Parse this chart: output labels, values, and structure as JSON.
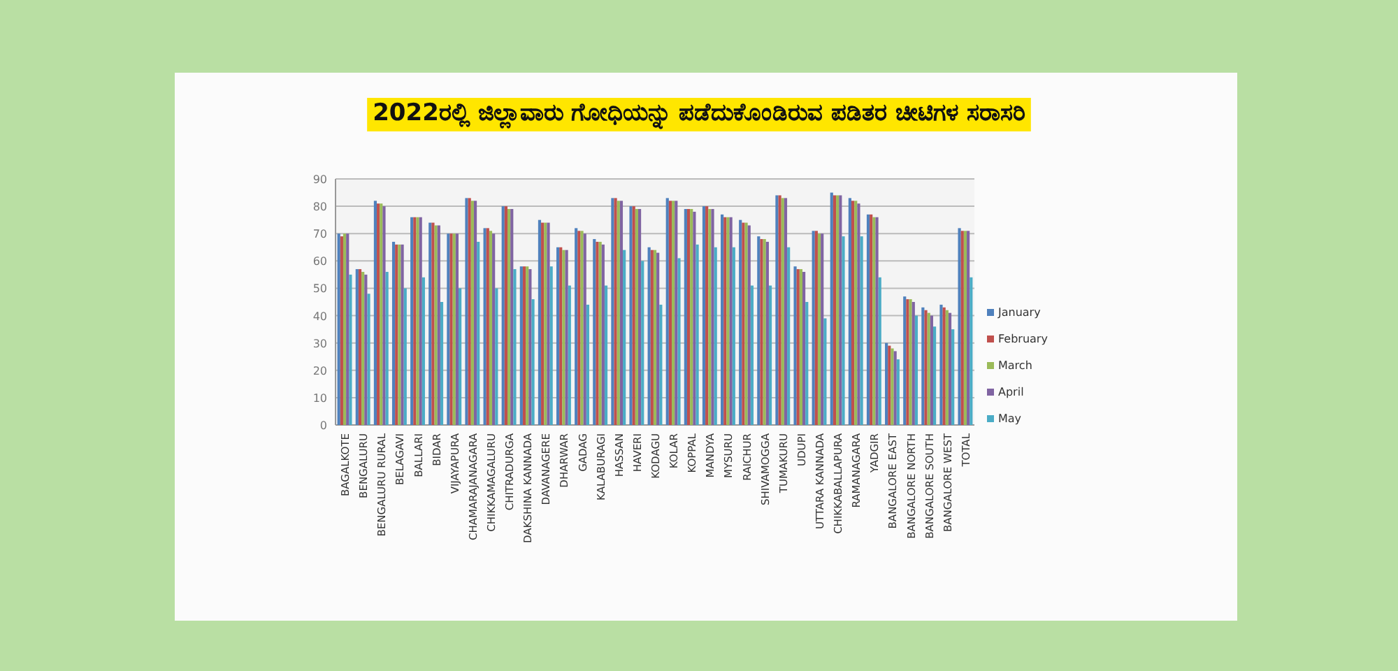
{
  "chart_data": {
    "type": "bar",
    "title": "2022ರಲ್ಲಿ ಜಿಲ್ಲಾವಾರು ಗೋಧಿಯನ್ನು ಪಡೆದುಕೊಂಡಿರುವ ಪಡಿತರ ಚೀಟಿಗಳ ಸರಾಸರಿ",
    "categories": [
      "BAGALKOTE",
      "BENGALURU",
      "BENGALURU RURAL",
      "BELAGAVI",
      "BALLARI",
      "BIDAR",
      "VIJAYAPURA",
      "CHAMARAJANAGARA",
      "CHIKKAMAGALURU",
      "CHITRADURGA",
      "DAKSHINA KANNADA",
      "DAVANAGERE",
      "DHARWAR",
      "GADAG",
      "KALABURAGI",
      "HASSAN",
      "HAVERI",
      "KODAGU",
      "KOLAR",
      "KOPPAL",
      "MANDYA",
      "MYSURU",
      "RAICHUR",
      "SHIVAMOGGA",
      "TUMAKURU",
      "UDUPI",
      "UTTARA KANNADA",
      "CHIKKABALLAPURA",
      "RAMANAGARA",
      "YADGIR",
      "BANGALORE EAST",
      "BANGALORE NORTH",
      "BANGALORE SOUTH",
      "BANGALORE WEST",
      "TOTAL"
    ],
    "series": [
      {
        "name": "January",
        "color": "#4f81bd",
        "values": [
          70,
          57,
          82,
          67,
          76,
          74,
          70,
          83,
          72,
          80,
          58,
          75,
          65,
          72,
          68,
          83,
          80,
          65,
          83,
          79,
          80,
          77,
          75,
          69,
          84,
          58,
          71,
          85,
          83,
          77,
          30,
          47,
          43,
          44,
          72
        ]
      },
      {
        "name": "February",
        "color": "#c0504d",
        "values": [
          69,
          57,
          81,
          66,
          76,
          74,
          70,
          83,
          72,
          80,
          58,
          74,
          65,
          71,
          67,
          83,
          80,
          64,
          82,
          79,
          80,
          76,
          74,
          68,
          84,
          57,
          71,
          84,
          82,
          77,
          29,
          46,
          42,
          43,
          71
        ]
      },
      {
        "name": "March",
        "color": "#9bbb59",
        "values": [
          70,
          56,
          81,
          66,
          76,
          73,
          70,
          82,
          71,
          79,
          58,
          74,
          64,
          71,
          67,
          82,
          79,
          64,
          82,
          79,
          79,
          76,
          74,
          68,
          83,
          57,
          70,
          84,
          82,
          76,
          28,
          46,
          41,
          42,
          71
        ]
      },
      {
        "name": "April",
        "color": "#8064a2",
        "values": [
          70,
          55,
          80,
          66,
          76,
          73,
          70,
          82,
          70,
          79,
          57,
          74,
          64,
          70,
          66,
          82,
          79,
          63,
          82,
          78,
          79,
          76,
          73,
          67,
          83,
          56,
          70,
          84,
          81,
          76,
          27,
          45,
          40,
          41,
          71
        ]
      },
      {
        "name": "May",
        "color": "#4bacc6",
        "values": [
          55,
          48,
          56,
          50,
          54,
          45,
          50,
          67,
          50,
          57,
          46,
          58,
          51,
          44,
          51,
          64,
          60,
          44,
          61,
          66,
          65,
          65,
          51,
          51,
          65,
          45,
          39,
          69,
          69,
          54,
          24,
          40,
          36,
          35,
          54
        ]
      }
    ],
    "ylim": [
      0,
      90
    ],
    "yticks": [
      0,
      10,
      20,
      30,
      40,
      50,
      60,
      70,
      80,
      90
    ],
    "grid": "y",
    "legend": "right"
  }
}
